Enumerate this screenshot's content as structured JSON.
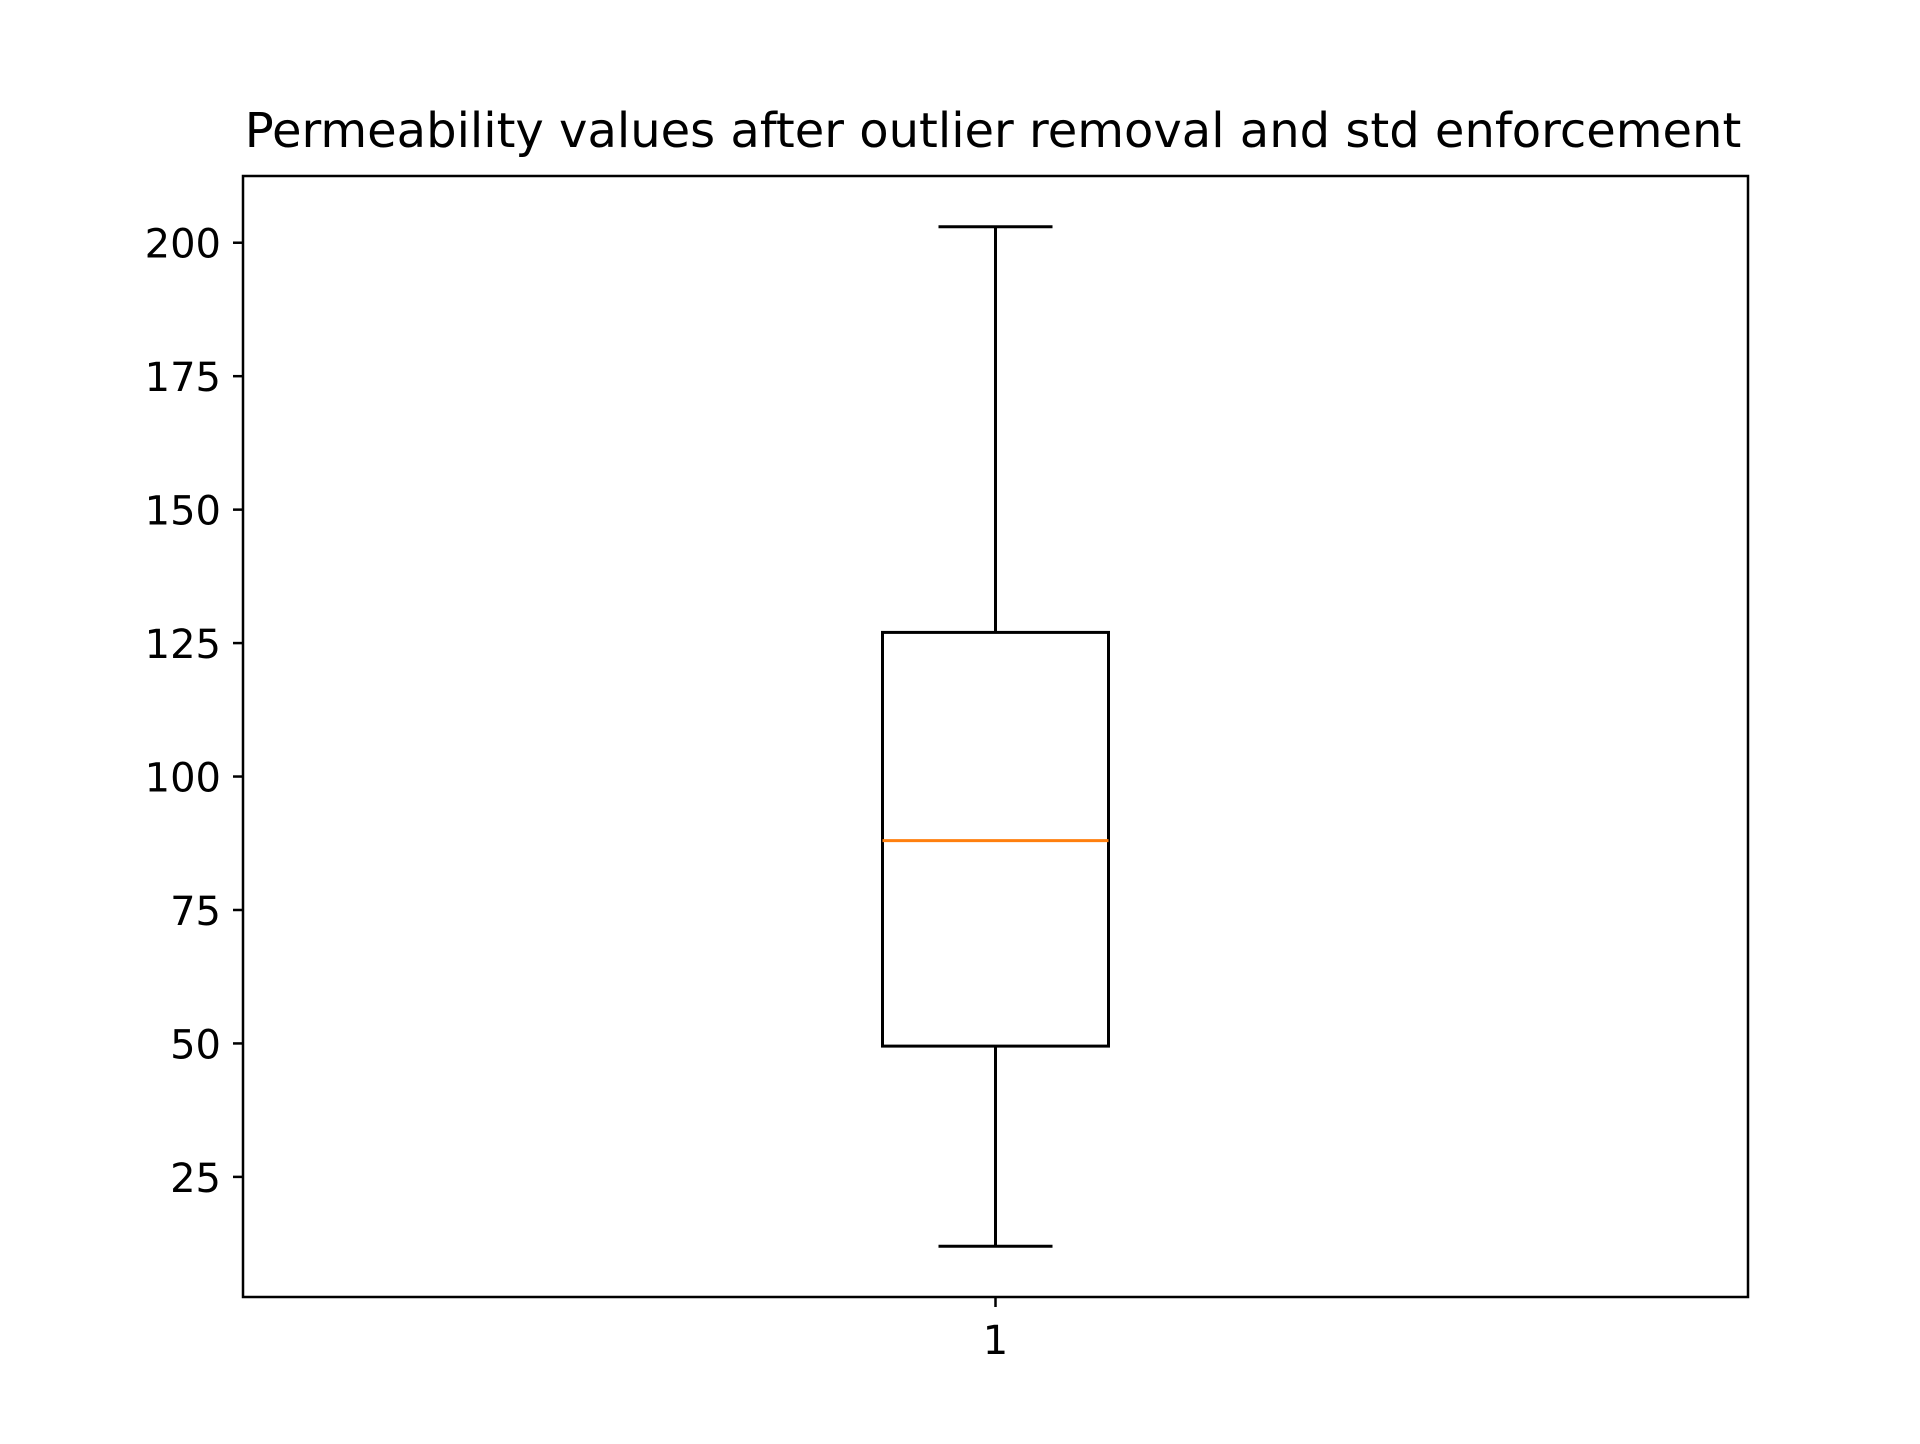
{
  "chart_data": {
    "type": "box",
    "title": "Permeability values after outlier removal and std enforcement",
    "xlabel": "",
    "ylabel": "",
    "categories": [
      "1"
    ],
    "boxes": [
      {
        "category": "1",
        "whisker_low": 12,
        "q1": 49.5,
        "median": 88,
        "q3": 127,
        "whisker_high": 203
      }
    ],
    "ylim": [
      2.5,
      212.5
    ],
    "yticks": [
      25,
      50,
      75,
      100,
      125,
      150,
      175,
      200
    ],
    "ytick_labels": [
      "25",
      "50",
      "75",
      "100",
      "125",
      "150",
      "175",
      "200"
    ],
    "grid": false,
    "colors": {
      "box": "#000000",
      "median": "#ff7f0e",
      "axes": "#000000",
      "background": "#ffffff"
    }
  }
}
